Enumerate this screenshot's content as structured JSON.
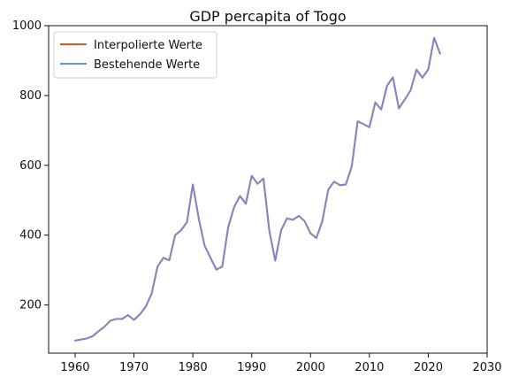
{
  "chart_data": {
    "type": "line",
    "title": "GDP percapita of Togo",
    "xlabel": "",
    "ylabel": "",
    "xlim": [
      1955.5,
      2030
    ],
    "ylim": [
      62,
      1000
    ],
    "x_ticks": [
      1960,
      1970,
      1980,
      1990,
      2000,
      2010,
      2020,
      2030
    ],
    "y_ticks": [
      200,
      400,
      600,
      800,
      1000
    ],
    "grid": false,
    "legend_position": "top-left",
    "series": [
      {
        "name": "Interpolierte Werte",
        "color": "#e8551f",
        "x": [
          1960,
          1961,
          1962,
          1963,
          1964,
          1965,
          1966,
          1967,
          1968,
          1969,
          1970,
          1971,
          1972,
          1973,
          1974,
          1975,
          1976,
          1977,
          1978,
          1979,
          1980,
          1981,
          1982,
          1983,
          1984,
          1985,
          1986,
          1987,
          1988,
          1989,
          1990,
          1991,
          1992,
          1993,
          1994,
          1995,
          1996,
          1997,
          1998,
          1999,
          2000,
          2001,
          2002,
          2003,
          2004,
          2005,
          2006,
          2007,
          2008,
          2009,
          2010,
          2011,
          2012,
          2013,
          2014,
          2015,
          2016,
          2017,
          2018,
          2019,
          2020,
          2021,
          2022
        ],
        "values": [
          98,
          101,
          104,
          111,
          125,
          138,
          155,
          160,
          160,
          171,
          157,
          173,
          195,
          232,
          310,
          335,
          328,
          400,
          414,
          437,
          545,
          448,
          370,
          335,
          301,
          310,
          422,
          480,
          512,
          490,
          570,
          547,
          562,
          412,
          327,
          414,
          448,
          444,
          455,
          440,
          405,
          392,
          440,
          530,
          553,
          543,
          545,
          597,
          726,
          718,
          709,
          780,
          760,
          828,
          852,
          763,
          788,
          815,
          874,
          851,
          875,
          965,
          920
        ]
      },
      {
        "name": "Bestehende Werte",
        "color": "#6495ed",
        "x": [
          1960,
          1961,
          1962,
          1963,
          1964,
          1965,
          1966,
          1967,
          1968,
          1969,
          1970,
          1971,
          1972,
          1973,
          1974,
          1975,
          1976,
          1977,
          1978,
          1979,
          1980,
          1981,
          1982,
          1983,
          1984,
          1985,
          1986,
          1987,
          1988,
          1989,
          1990,
          1991,
          1992,
          1993,
          1994,
          1995,
          1996,
          1997,
          1998,
          1999,
          2000,
          2001,
          2002,
          2003,
          2004,
          2005,
          2006,
          2007,
          2008,
          2009,
          2010,
          2011,
          2012,
          2013,
          2014,
          2015,
          2016,
          2017,
          2018,
          2019,
          2020,
          2021,
          2022
        ],
        "values": [
          98,
          101,
          104,
          111,
          125,
          138,
          155,
          160,
          160,
          171,
          157,
          173,
          195,
          232,
          310,
          335,
          328,
          400,
          414,
          437,
          545,
          448,
          370,
          335,
          301,
          310,
          422,
          480,
          512,
          490,
          570,
          547,
          562,
          412,
          327,
          414,
          448,
          444,
          455,
          440,
          405,
          392,
          440,
          530,
          553,
          543,
          545,
          597,
          726,
          718,
          709,
          780,
          760,
          828,
          852,
          763,
          788,
          815,
          874,
          851,
          875,
          965,
          920
        ]
      }
    ]
  }
}
